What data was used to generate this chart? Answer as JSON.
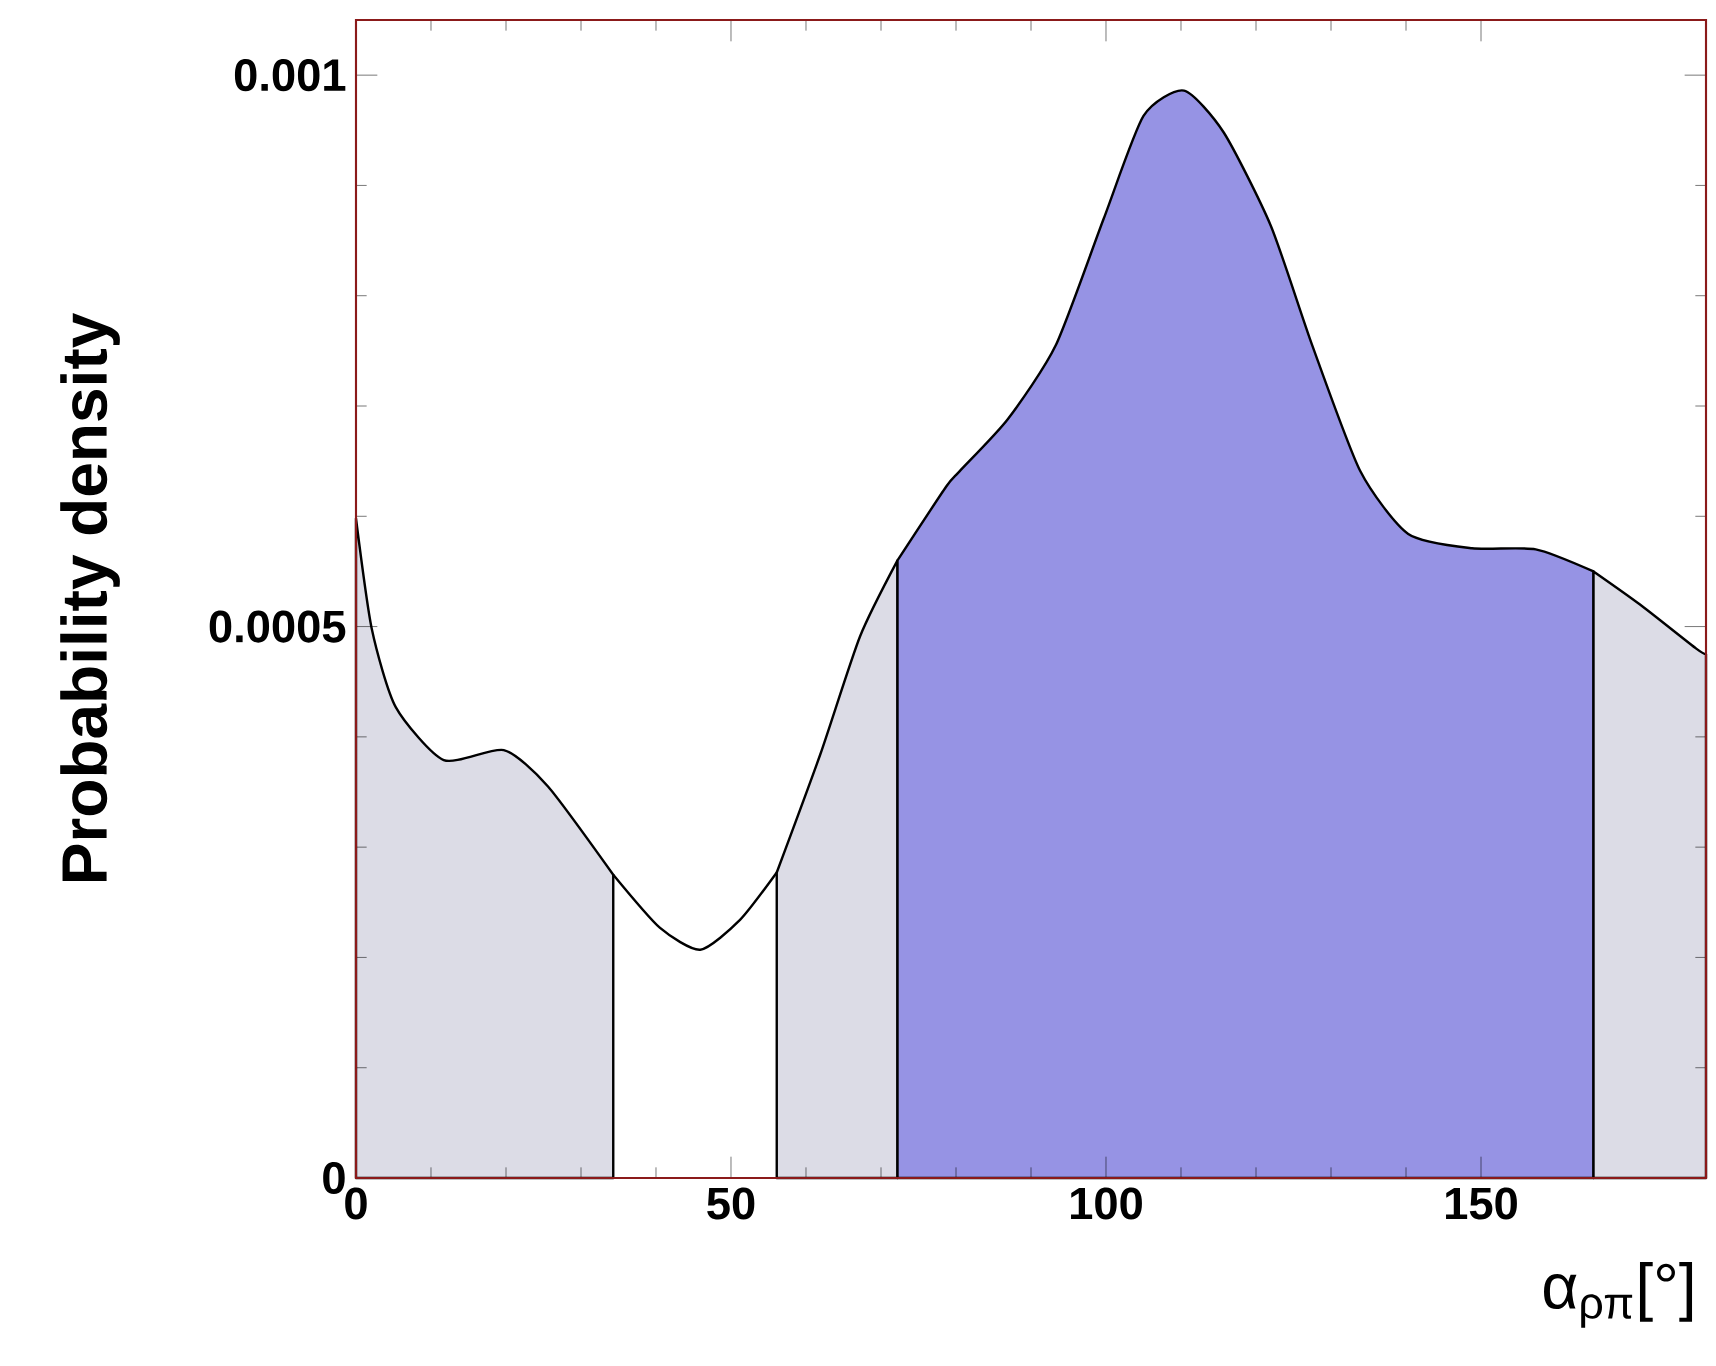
{
  "chart_data": {
    "type": "area",
    "xlabel": "α$_{ρπ}$[°]",
    "ylabel": "Probability density",
    "xlim": [
      0,
      180
    ],
    "xticks": [
      0,
      50,
      100,
      150
    ],
    "ylim": [
      0,
      0.00105
    ],
    "yticks": [
      0,
      0.0005,
      0.001
    ],
    "series": [
      {
        "color": "#dcdce6",
        "x": [
          0,
          2.1,
          5.3,
          11.7,
          19.7,
          25.6,
          34.3
        ],
        "values": [
          0.000598,
          0.000498,
          0.000427,
          0.000379,
          0.000388,
          0.000355,
          0.000275
        ]
      },
      {
        "type": "line",
        "color": "#000000",
        "x": [
          34.3,
          40.5,
          45.9,
          51.2,
          56.1
        ],
        "values": [
          0.000275,
          0.000227,
          0.000207,
          0.000234,
          0.000277
        ]
      },
      {
        "color": "#dcdce6",
        "x": [
          56.1,
          61.9,
          67.2,
          72.2
        ],
        "values": [
          0.000277,
          0.000384,
          0.000491,
          0.00056
        ]
      },
      {
        "color": "#9693e4",
        "x": [
          72.2,
          78.7,
          80.5,
          86.9,
          93.3,
          99.7,
          105,
          110.4,
          115.7,
          122,
          127.5,
          133.9,
          140.3,
          148.8,
          157.3,
          165
        ],
        "values": [
          0.00056,
          0.000627,
          0.000641,
          0.000688,
          0.000755,
          0.00087,
          0.000963,
          0.000986,
          0.000948,
          0.000863,
          0.000755,
          0.000641,
          0.000584,
          0.000571,
          0.00057,
          0.00055
        ]
      },
      {
        "color": "#dcdce6",
        "x": [
          165,
          171.2,
          178.7,
          180
        ],
        "values": [
          0.00055,
          0.00052,
          0.00048,
          0.000475
        ]
      }
    ]
  }
}
